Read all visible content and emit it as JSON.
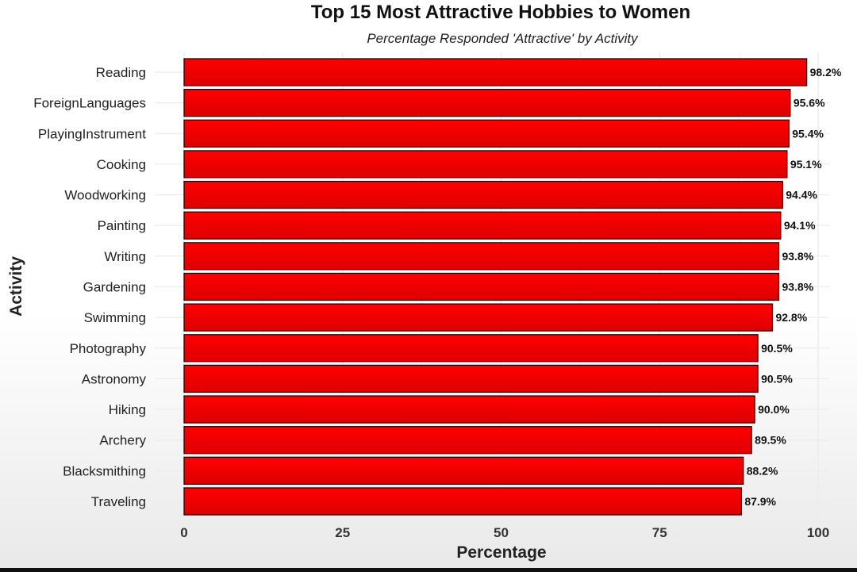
{
  "chart_data": {
    "type": "bar",
    "orientation": "horizontal",
    "title": "Top 15 Most Attractive Hobbies to Women",
    "subtitle": "Percentage Responded 'Attractive' by Activity",
    "xlabel": "Percentage",
    "ylabel": "Activity",
    "xlim": [
      0,
      100
    ],
    "xticks": [
      "0",
      "25",
      "50",
      "75",
      "100"
    ],
    "grid": true,
    "categories": [
      "Reading",
      "ForeignLanguages",
      "PlayingInstrument",
      "Cooking",
      "Woodworking",
      "Painting",
      "Writing",
      "Gardening",
      "Swimming",
      "Photography",
      "Astronomy",
      "Hiking",
      "Archery",
      "Blacksmithing",
      "Traveling"
    ],
    "values": [
      98.2,
      95.6,
      95.4,
      95.1,
      94.4,
      94.1,
      93.8,
      93.8,
      92.8,
      90.5,
      90.5,
      90.0,
      89.5,
      88.2,
      87.9
    ],
    "labels": [
      "98.2%",
      "95.6%",
      "95.4%",
      "95.1%",
      "94.4%",
      "94.1%",
      "93.8%",
      "93.8%",
      "92.8%",
      "90.5%",
      "90.5%",
      "90.0%",
      "89.5%",
      "88.2%",
      "87.9%"
    ],
    "colors": {
      "bar_top": "#ff0000",
      "bar_bottom": "#dd0000",
      "bar_stroke": "#3a0000",
      "grid": "#ececec",
      "text": "#222222"
    }
  }
}
